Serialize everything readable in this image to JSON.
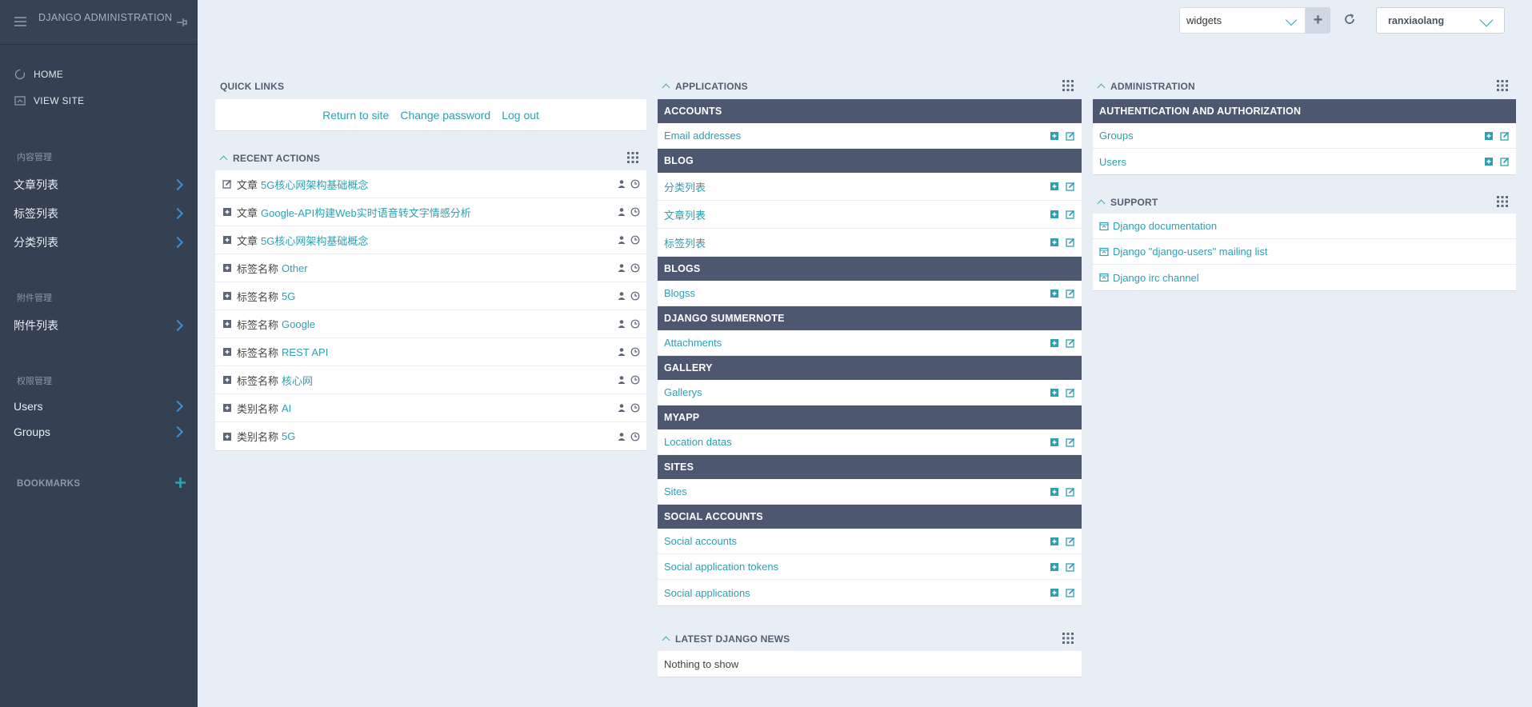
{
  "sidebar": {
    "title": "DJANGO ADMINISTRATION",
    "home": "HOME",
    "view_site": "VIEW SITE",
    "sections": [
      {
        "title": "内容管理",
        "items": [
          "文章列表",
          "标签列表",
          "分类列表"
        ]
      },
      {
        "title": "附件管理",
        "items": [
          "附件列表"
        ]
      },
      {
        "title": "权限管理",
        "items": [
          "Users",
          "Groups"
        ]
      }
    ],
    "bookmarks": "BOOKMARKS"
  },
  "topbar": {
    "widget_select": "widgets",
    "add": "+",
    "user": "ranxiaolang"
  },
  "quick_links": {
    "title": "QUICK LINKS",
    "links": [
      "Return to site",
      "Change password",
      "Log out"
    ]
  },
  "recent_actions": {
    "title": "RECENT ACTIONS",
    "items": [
      {
        "action": "change",
        "category": "文章",
        "object": "5G核心网架构基础概念"
      },
      {
        "action": "add",
        "category": "文章",
        "object": "Google-API构建Web实时语音转文字情感分析"
      },
      {
        "action": "add",
        "category": "文章",
        "object": "5G核心网架构基础概念"
      },
      {
        "action": "add",
        "category": "标签名称",
        "object": "Other"
      },
      {
        "action": "add",
        "category": "标签名称",
        "object": "5G"
      },
      {
        "action": "add",
        "category": "标签名称",
        "object": "Google"
      },
      {
        "action": "add",
        "category": "标签名称",
        "object": "REST API"
      },
      {
        "action": "add",
        "category": "标签名称",
        "object": "核心网"
      },
      {
        "action": "add",
        "category": "类别名称",
        "object": "AI"
      },
      {
        "action": "add",
        "category": "类别名称",
        "object": "5G"
      }
    ]
  },
  "applications": {
    "title": "APPLICATIONS",
    "apps": [
      {
        "name": "ACCOUNTS",
        "models": [
          "Email addresses"
        ]
      },
      {
        "name": "BLOG",
        "models": [
          "分类列表",
          "文章列表",
          "标签列表"
        ]
      },
      {
        "name": "BLOGS",
        "models": [
          "Blogss"
        ]
      },
      {
        "name": "DJANGO SUMMERNOTE",
        "models": [
          "Attachments"
        ]
      },
      {
        "name": "GALLERY",
        "models": [
          "Gallerys"
        ]
      },
      {
        "name": "MYAPP",
        "models": [
          "Location datas"
        ]
      },
      {
        "name": "SITES",
        "models": [
          "Sites"
        ]
      },
      {
        "name": "SOCIAL ACCOUNTS",
        "models": [
          "Social accounts",
          "Social application tokens",
          "Social applications"
        ]
      }
    ]
  },
  "news": {
    "title": "LATEST DJANGO NEWS",
    "empty": "Nothing to show"
  },
  "administration": {
    "title": "ADMINISTRATION",
    "app": "AUTHENTICATION AND AUTHORIZATION",
    "models": [
      "Groups",
      "Users"
    ]
  },
  "support": {
    "title": "SUPPORT",
    "links": [
      "Django documentation",
      "Django \"django-users\" mailing list",
      "Django irc channel"
    ]
  },
  "colors": {
    "sidebar_bg": "#354052",
    "app_header_bg": "#4d5870",
    "link": "#2e9fb1",
    "page_bg": "#e8eef5"
  }
}
